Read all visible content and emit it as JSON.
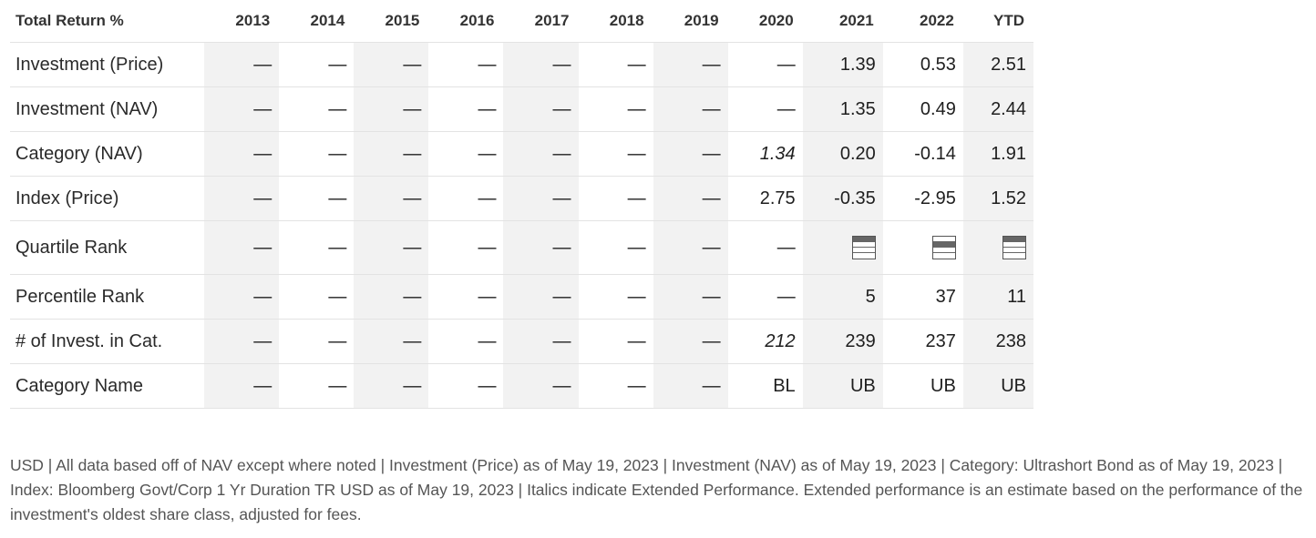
{
  "table": {
    "header_label": "Total Return %",
    "years": [
      "2013",
      "2014",
      "2015",
      "2016",
      "2017",
      "2018",
      "2019",
      "2020",
      "2021",
      "2022",
      "YTD"
    ],
    "rows": [
      {
        "label": "Investment (Price)",
        "cells": [
          "—",
          "—",
          "—",
          "—",
          "—",
          "—",
          "—",
          "—",
          "1.39",
          "0.53",
          "2.51"
        ]
      },
      {
        "label": "Investment (NAV)",
        "cells": [
          "—",
          "—",
          "—",
          "—",
          "—",
          "—",
          "—",
          "—",
          "1.35",
          "0.49",
          "2.44"
        ]
      },
      {
        "label": "Category (NAV)",
        "cells": [
          "—",
          "—",
          "—",
          "—",
          "—",
          "—",
          "—",
          "1.34",
          "0.20",
          "-0.14",
          "1.91"
        ]
      },
      {
        "label": "Index (Price)",
        "cells": [
          "—",
          "—",
          "—",
          "—",
          "—",
          "—",
          "—",
          "2.75",
          "-0.35",
          "-2.95",
          "1.52"
        ]
      },
      {
        "label": "Quartile Rank",
        "cells": [
          "—",
          "—",
          "—",
          "—",
          "—",
          "—",
          "—",
          "—"
        ],
        "quartiles": [
          1,
          2,
          1
        ]
      },
      {
        "label": "Percentile Rank",
        "cells": [
          "—",
          "—",
          "—",
          "—",
          "—",
          "—",
          "—",
          "—",
          "5",
          "37",
          "11"
        ]
      },
      {
        "label": "# of Invest. in Cat.",
        "cells": [
          "—",
          "—",
          "—",
          "—",
          "—",
          "—",
          "—",
          "212",
          "239",
          "237",
          "238"
        ]
      },
      {
        "label": "Category Name",
        "cells": [
          "—",
          "—",
          "—",
          "—",
          "—",
          "—",
          "—",
          "BL",
          "UB",
          "UB",
          "UB"
        ]
      }
    ]
  },
  "footnote": "USD | All data based off of NAV except where noted | Investment (Price) as of May 19, 2023 | Investment (NAV) as of May 19, 2023 | Category: Ultrashort Bond as of May 19, 2023 | Index: Bloomberg Govt/Corp 1 Yr Duration TR USD as of May 19, 2023 | Italics indicate Extended Performance. Extended performance is an estimate based on the performance of the investment's oldest share class, adjusted for fees.",
  "colors": {
    "shade": "#f2f2f2",
    "border": "#e3e3e3",
    "text": "#1e1e1e",
    "footnote": "#555555"
  }
}
